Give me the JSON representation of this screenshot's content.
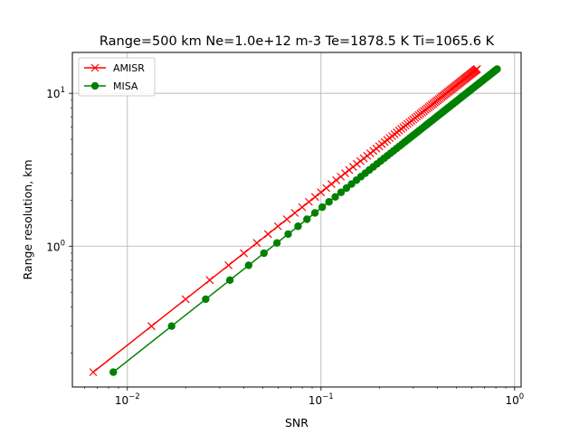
{
  "chart_data": {
    "type": "line",
    "title": "Range=500 km  Ne=1.0e+12 m-3  Te=1878.5 K  Ti=1065.6 K",
    "xlabel": "SNR",
    "ylabel": "Range resolution, km",
    "xscale": "log",
    "yscale": "log",
    "xlim": [
      0.0052,
      1.08
    ],
    "ylim": [
      0.12,
      18.5
    ],
    "grid": true,
    "legend_position": "top-left",
    "xticks": [
      {
        "value": 0.01,
        "base": "10",
        "exp": "−2"
      },
      {
        "value": 0.1,
        "base": "10",
        "exp": "−1"
      },
      {
        "value": 1,
        "base": "10",
        "exp": "0"
      }
    ],
    "yticks": [
      {
        "value": 1,
        "base": "10",
        "exp": "0"
      },
      {
        "value": 10,
        "base": "10",
        "exp": "1"
      }
    ],
    "series": [
      {
        "name": "AMISR",
        "color": "#ff0000",
        "marker": "x",
        "step": 0.15,
        "count": 96,
        "snr_per_km": 0.0444
      },
      {
        "name": "MISA",
        "color": "#008000",
        "marker": "o",
        "step": 0.15,
        "count": 96,
        "snr_per_km": 0.0564
      }
    ]
  }
}
